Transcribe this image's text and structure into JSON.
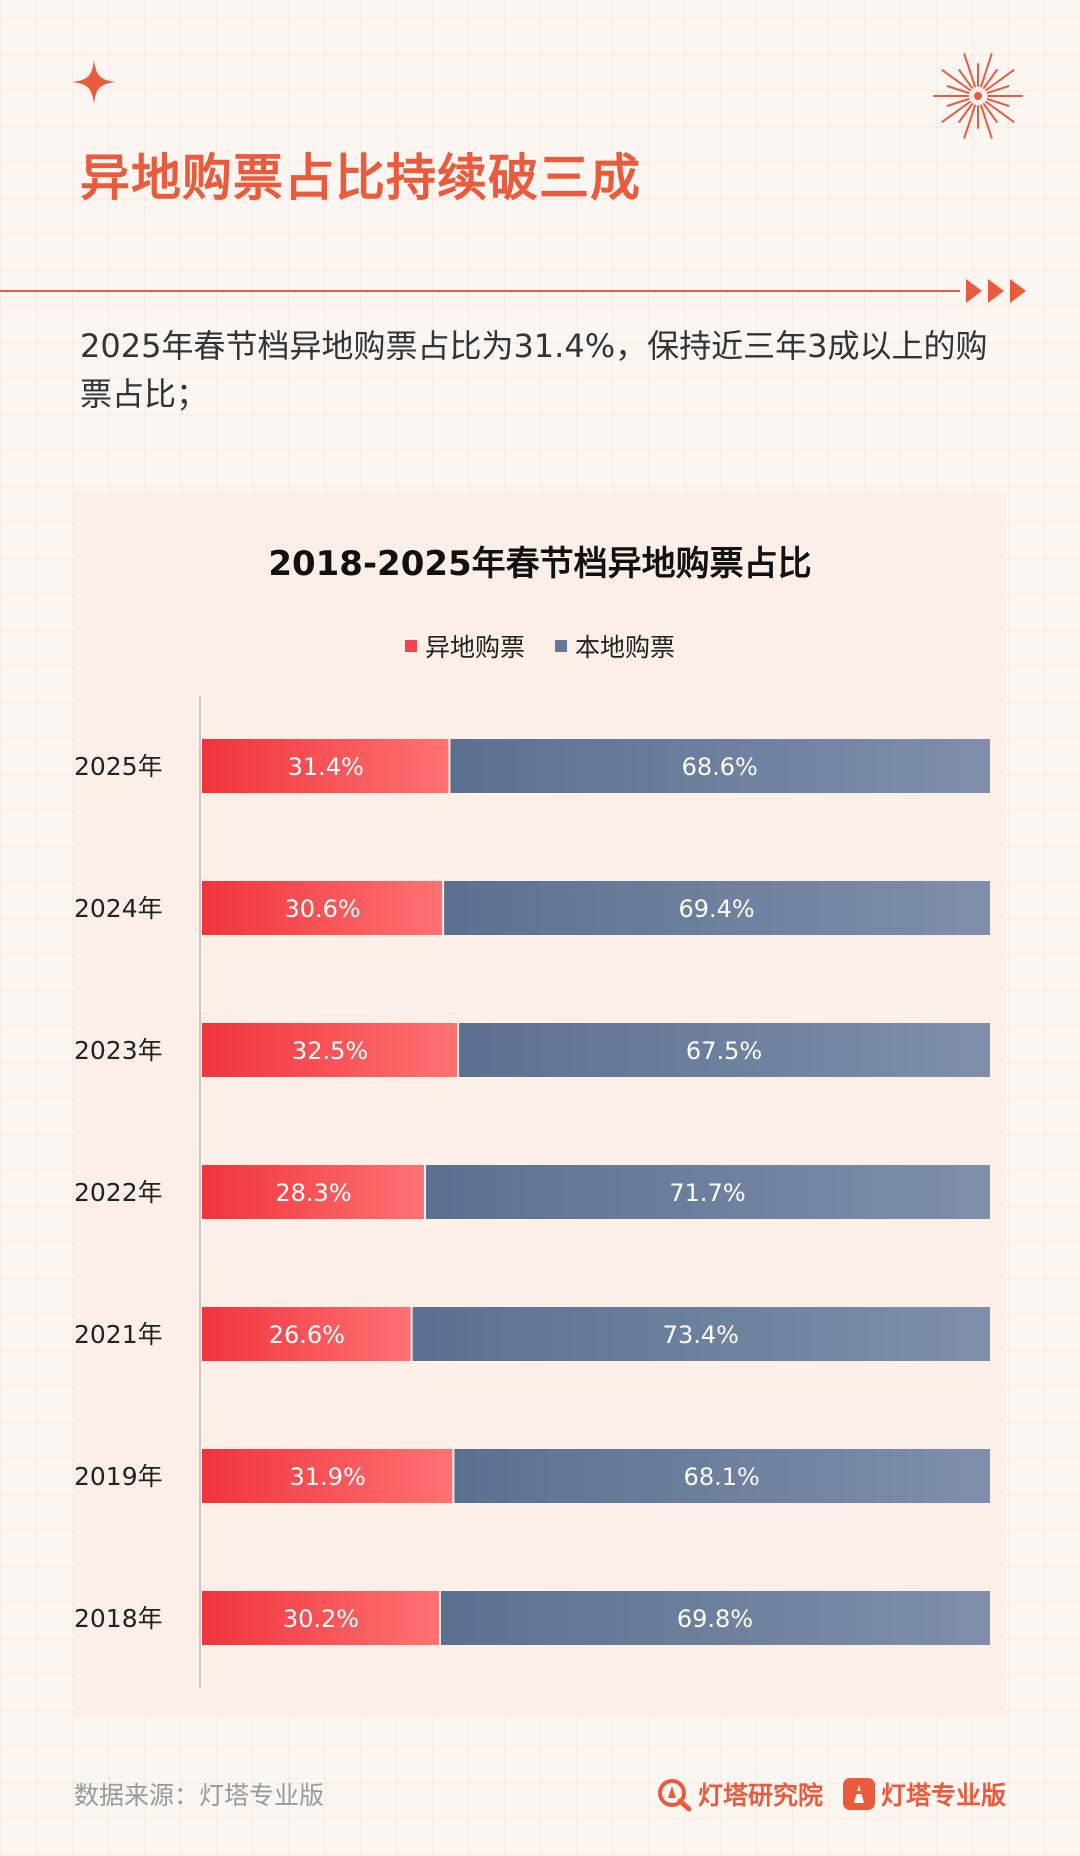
{
  "page": {
    "title": "异地购票占比持续破三成",
    "subtitle": "2025年春节档异地购票占比为31.4%，保持近三年3成以上的购票占比；"
  },
  "icons": {
    "sparkle": "sparkle-icon",
    "firework": "firework-icon",
    "arrows": "triple-arrow-icon"
  },
  "colors": {
    "accent": "#ea5a3c",
    "remote": "#f0464b",
    "local": "#637898"
  },
  "chart_data": {
    "type": "bar",
    "orientation": "horizontal",
    "stacked": true,
    "title": "2018-2025年春节档异地购票占比",
    "legend_position": "top",
    "categories": [
      "2025年",
      "2024年",
      "2023年",
      "2022年",
      "2021年",
      "2019年",
      "2018年"
    ],
    "series": [
      {
        "name": "异地购票",
        "values": [
          31.4,
          30.6,
          32.5,
          28.3,
          26.6,
          31.9,
          30.2
        ],
        "labels": [
          "31.4%",
          "30.6%",
          "32.5%",
          "28.3%",
          "26.6%",
          "31.9%",
          "30.2%"
        ]
      },
      {
        "name": "本地购票",
        "values": [
          68.6,
          69.4,
          67.5,
          71.7,
          73.4,
          68.1,
          69.8
        ],
        "labels": [
          "68.6%",
          "69.4%",
          "67.5%",
          "71.7%",
          "73.4%",
          "68.1%",
          "69.8%"
        ]
      }
    ],
    "xlim": [
      0,
      100
    ]
  },
  "footer": {
    "source": "数据来源：灯塔专业版",
    "logo1": "灯塔研究院",
    "logo2": "灯塔专业版"
  }
}
